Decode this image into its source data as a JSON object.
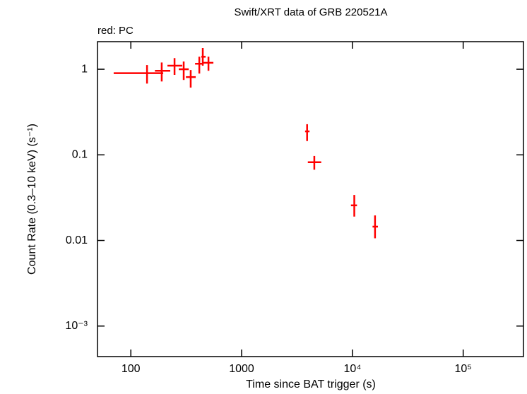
{
  "chart_data": {
    "type": "scatter",
    "title": "Swift/XRT data of GRB 220521A",
    "subtitle": "red: PC",
    "x_label": "Time since BAT trigger (s)",
    "y_label": "Count Rate (0.3–10 keV) (s⁻¹)",
    "x_log": true,
    "y_log": true,
    "xlim": [
      50,
      350000
    ],
    "ylim": [
      0.00044,
      2.1
    ],
    "xticks": [
      100,
      1000,
      {
        "value": 10000,
        "label": "10⁴"
      },
      {
        "value": 100000,
        "label": "10⁵"
      }
    ],
    "yticks": [
      1,
      0.1,
      0.01,
      {
        "value": 0.001,
        "label": "10⁻³"
      }
    ],
    "series": [
      {
        "name": "PC",
        "color": "#ff0000",
        "x": [
          140,
          190,
          248,
          300,
          347,
          415,
          446,
          502,
          3900,
          4530,
          10400,
          16000
        ],
        "x_low": [
          70,
          165,
          214,
          271,
          314,
          380,
          433,
          446,
          3740,
          3960,
          9700,
          15200
        ],
        "x_high": [
          196,
          227,
          291,
          333,
          385,
          440,
          473,
          556,
          4100,
          5230,
          11000,
          17000
        ],
        "values": [
          0.9,
          0.96,
          1.1,
          1.0,
          0.81,
          1.16,
          1.4,
          1.19,
          0.188,
          0.082,
          0.0257,
          0.0145
        ],
        "y_low": [
          0.68,
          0.72,
          0.86,
          0.75,
          0.61,
          0.89,
          1.1,
          0.96,
          0.145,
          0.067,
          0.019,
          0.0106
        ],
        "y_high": [
          1.12,
          1.2,
          1.35,
          1.23,
          0.98,
          1.4,
          1.77,
          1.4,
          0.228,
          0.097,
          0.034,
          0.0196
        ]
      }
    ]
  }
}
